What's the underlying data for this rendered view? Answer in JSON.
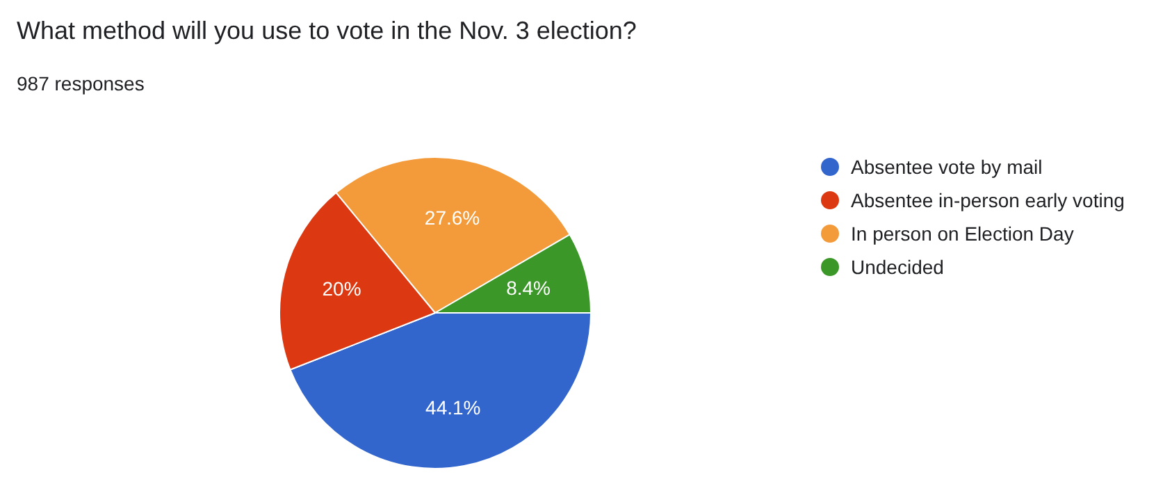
{
  "chart_data": {
    "type": "pie",
    "title": "What method will you use to vote in the Nov. 3 election?",
    "subtitle": "987 responses",
    "categories": [
      "Absentee vote by mail",
      "Absentee in-person early voting",
      "In person on Election Day",
      "Undecided"
    ],
    "values": [
      44.1,
      20,
      27.6,
      8.4
    ],
    "colors": [
      "#3366cc",
      "#dc3912",
      "#f39b3a",
      "#3b9728"
    ],
    "value_labels": [
      "44.1%",
      "20%",
      "27.6%",
      "8.4%"
    ],
    "legend": "right"
  }
}
